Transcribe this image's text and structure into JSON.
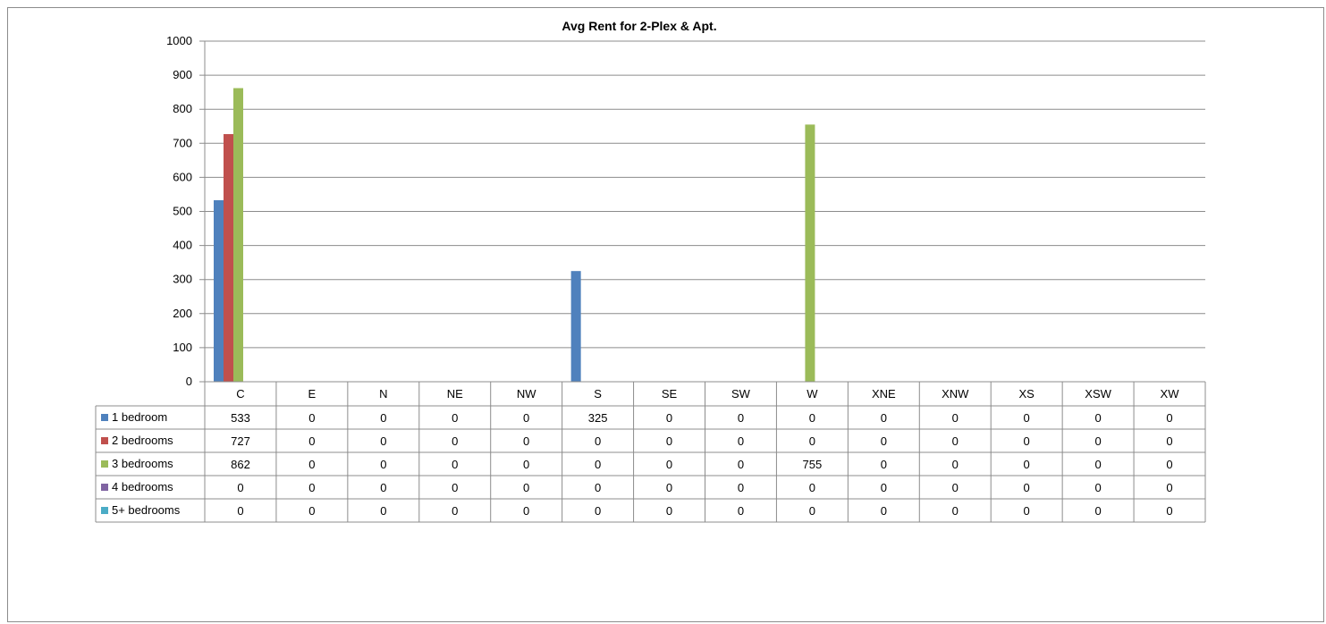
{
  "chart_data": {
    "type": "bar",
    "title": "Avg Rent for 2-Plex & Apt.",
    "categories": [
      "C",
      "E",
      "N",
      "NE",
      "NW",
      "S",
      "SE",
      "SW",
      "W",
      "XNE",
      "XNW",
      "XS",
      "XSW",
      "XW"
    ],
    "series": [
      {
        "name": "1 bedroom",
        "color": "#4f81bd",
        "values": [
          533,
          0,
          0,
          0,
          0,
          325,
          0,
          0,
          0,
          0,
          0,
          0,
          0,
          0
        ]
      },
      {
        "name": "2 bedrooms",
        "color": "#c0504d",
        "values": [
          727,
          0,
          0,
          0,
          0,
          0,
          0,
          0,
          0,
          0,
          0,
          0,
          0,
          0
        ]
      },
      {
        "name": "3 bedrooms",
        "color": "#9bbb59",
        "values": [
          862,
          0,
          0,
          0,
          0,
          0,
          0,
          0,
          755,
          0,
          0,
          0,
          0,
          0
        ]
      },
      {
        "name": "4 bedrooms",
        "color": "#8064a2",
        "values": [
          0,
          0,
          0,
          0,
          0,
          0,
          0,
          0,
          0,
          0,
          0,
          0,
          0,
          0
        ]
      },
      {
        "name": "5+ bedrooms",
        "color": "#4bacc6",
        "values": [
          0,
          0,
          0,
          0,
          0,
          0,
          0,
          0,
          0,
          0,
          0,
          0,
          0,
          0
        ]
      }
    ],
    "ylim": [
      0,
      1000
    ],
    "yticks": [
      0,
      100,
      200,
      300,
      400,
      500,
      600,
      700,
      800,
      900,
      1000
    ],
    "grid": true,
    "legend": "data-table",
    "xlabel": "",
    "ylabel": ""
  }
}
